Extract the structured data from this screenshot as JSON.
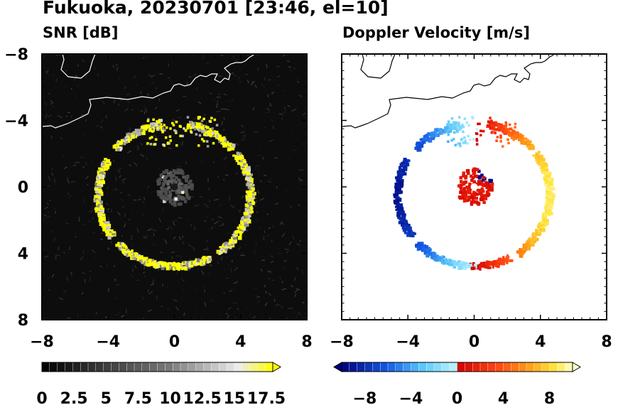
{
  "figure_title": "Fukuoka, 20230701 [23:46, el=10]",
  "panels": [
    {
      "title": "SNR [dB]"
    },
    {
      "title": "Doppler Velocity [m/s]"
    }
  ],
  "colors": {
    "snr_low": "#000000",
    "snr_mid": "#808080",
    "snr_high": "#ffff00",
    "doppler_negative_dark": "#000080",
    "doppler_negative_light": "#aaf0ff",
    "doppler_positive_dark": "#c80000",
    "doppler_positive_light": "#ffffcc"
  },
  "chart_data": [
    {
      "type": "heatmap",
      "title": "SNR [dB]",
      "xlabel": "",
      "ylabel": "",
      "xlim": [
        -8,
        8
      ],
      "ylim": [
        -8,
        8
      ],
      "xticks": [
        -8,
        -4,
        0,
        4,
        8
      ],
      "yticks": [
        -8,
        -4,
        0,
        4,
        8
      ],
      "colorbar": {
        "min": 0,
        "max": 18,
        "extend": "max",
        "tick_values": [
          0,
          2.5,
          5,
          7.5,
          10,
          12.5,
          15,
          17.5
        ],
        "tick_labels": [
          "0",
          "2.5",
          "5",
          "7.5",
          "10",
          "12.5",
          "15",
          "17.5"
        ]
      },
      "echo_ring": {
        "center": [
          0,
          -0.5
        ],
        "radius_x": 4.6,
        "radius_y": 4.3,
        "typical_value": 15,
        "peak_value": 18
      },
      "near_field_clutter": {
        "center": [
          0,
          0
        ],
        "radius": 1.1,
        "typical_value": 8
      },
      "grid": false
    },
    {
      "type": "heatmap",
      "title": "Doppler Velocity [m/s]",
      "xlabel": "",
      "ylabel": "",
      "xlim": [
        -8,
        8
      ],
      "ylim": [
        -8,
        8
      ],
      "xticks": [
        -8,
        -4,
        0,
        4,
        8
      ],
      "yticks": [
        -8,
        -4,
        0,
        4,
        8
      ],
      "colorbar": {
        "min": -10,
        "max": 10,
        "extend": "both",
        "tick_values": [
          -8,
          -4,
          0,
          4,
          8
        ],
        "tick_labels": [
          "−8",
          "−4",
          "0",
          "4",
          "8"
        ]
      },
      "echo_ring": {
        "center": [
          0,
          -0.5
        ],
        "radius_x": 4.6,
        "radius_y": 4.3,
        "velocity_amplitude": 9
      },
      "near_field_clutter": {
        "center": [
          0,
          0
        ],
        "radius": 1.1,
        "typical_value": 1
      },
      "grid": false
    }
  ],
  "tick_labels": {
    "x": [
      "−8",
      "−4",
      "0",
      "4",
      "8"
    ],
    "y": [
      "8",
      "4",
      "0",
      "−4",
      "−8"
    ]
  }
}
